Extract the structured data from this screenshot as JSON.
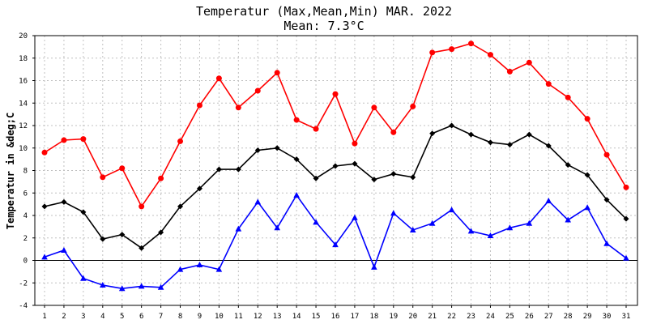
{
  "chart_data": {
    "type": "line",
    "title": "Temperatur (Max,Mean,Min) MAR. 2022",
    "subtitle": "Mean: 7.3°C",
    "ylabel": "Temperatur in &deg;C",
    "xlabel": "",
    "x": [
      1,
      2,
      3,
      4,
      5,
      6,
      7,
      8,
      9,
      10,
      11,
      12,
      13,
      14,
      15,
      16,
      17,
      18,
      19,
      20,
      21,
      22,
      23,
      24,
      25,
      26,
      27,
      28,
      29,
      30,
      31
    ],
    "ylim": [
      -4,
      20
    ],
    "yticks": [
      -4,
      -2,
      0,
      2,
      4,
      6,
      8,
      10,
      12,
      14,
      16,
      18,
      20
    ],
    "grid": true,
    "series": [
      {
        "color": "#ff0000",
        "marker": "circle",
        "values": [
          9.6,
          10.7,
          10.8,
          7.4,
          8.2,
          4.8,
          7.3,
          10.6,
          13.8,
          16.2,
          13.6,
          15.1,
          16.7,
          12.5,
          11.7,
          14.8,
          10.4,
          13.6,
          11.4,
          13.7,
          18.5,
          18.8,
          19.3,
          18.3,
          16.8,
          17.6,
          15.7,
          14.5,
          12.6,
          9.4,
          6.5
        ]
      },
      {
        "color": "#000000",
        "marker": "diamond",
        "values": [
          4.8,
          5.2,
          4.3,
          1.9,
          2.3,
          1.1,
          2.5,
          4.8,
          6.4,
          8.1,
          8.1,
          9.8,
          10.0,
          9.0,
          7.3,
          8.4,
          8.6,
          7.2,
          7.7,
          7.4,
          11.3,
          12.0,
          11.2,
          10.5,
          10.3,
          11.2,
          10.2,
          8.5,
          7.6,
          5.4,
          3.7
        ]
      },
      {
        "color": "#0000ff",
        "marker": "triangle",
        "values": [
          0.3,
          0.9,
          -1.6,
          -2.2,
          -2.5,
          -2.3,
          -2.4,
          -0.8,
          -0.4,
          -0.8,
          2.8,
          5.2,
          2.9,
          5.8,
          3.4,
          1.4,
          3.8,
          -0.6,
          4.2,
          2.7,
          3.3,
          4.5,
          2.6,
          2.2,
          2.9,
          3.3,
          5.3,
          3.6,
          4.7,
          1.5,
          0.2
        ]
      }
    ]
  }
}
